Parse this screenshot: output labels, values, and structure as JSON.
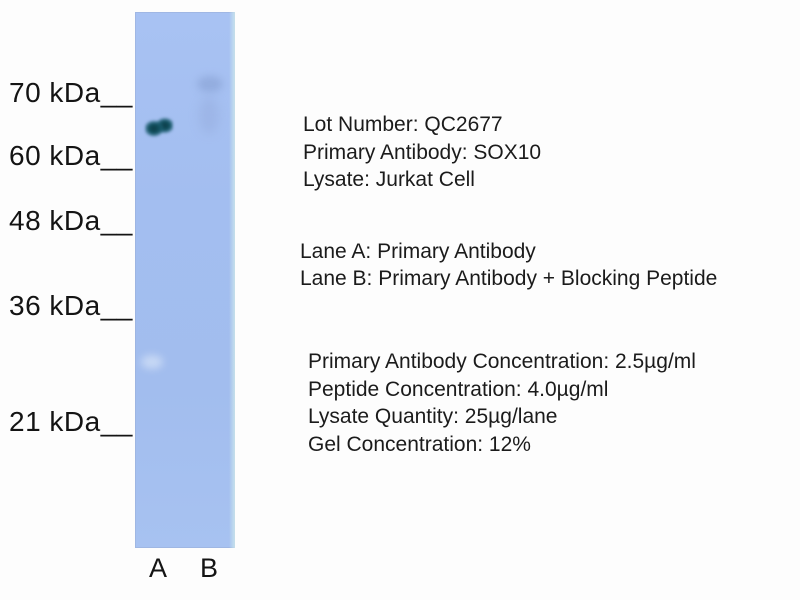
{
  "figure": {
    "type": "western-blot",
    "markers": [
      "70 kDa__",
      "60 kDa__",
      "48 kDa__",
      "36 kDa__",
      "21 kDa__"
    ],
    "lane_labels": [
      "A",
      "B"
    ],
    "info_block": [
      "Lot Number: QC2677",
      "Primary Antibody: SOX10",
      "Lysate: Jurkat Cell"
    ],
    "lane_block": [
      "Lane A: Primary Antibody",
      "Lane B: Primary Antibody + Blocking Peptide"
    ],
    "conditions_block": [
      "Primary Antibody Concentration: 2.5µg/ml",
      "Peptide Concentration: 4.0µg/ml",
      "Lysate Quantity: 25µg/lane",
      "Gel Concentration: 12%"
    ],
    "colors": {
      "gel": "#a3beef",
      "band": "#0c3c48",
      "text": "#1b1b1b",
      "background": "#fdfdfd"
    }
  }
}
